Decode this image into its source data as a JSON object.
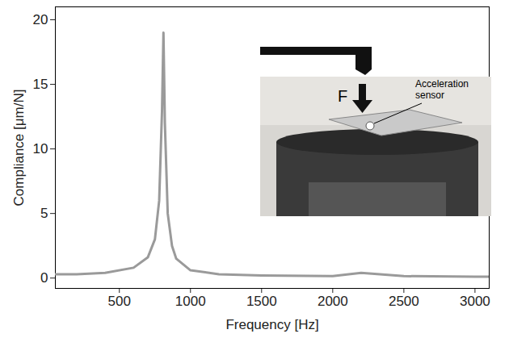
{
  "chart_data": {
    "type": "line",
    "x_label": "Frequency [Hz]",
    "y_label": "Compliance [μm/N]",
    "x": [
      50,
      200,
      400,
      600,
      700,
      750,
      780,
      800,
      810,
      820,
      840,
      870,
      900,
      1000,
      1200,
      1500,
      2000,
      2200,
      2500,
      3000,
      3100
    ],
    "values": [
      0.3,
      0.3,
      0.4,
      0.8,
      1.6,
      3.0,
      6.0,
      13.0,
      19.0,
      12.0,
      5.0,
      2.5,
      1.5,
      0.6,
      0.3,
      0.2,
      0.15,
      0.4,
      0.15,
      0.1,
      0.1
    ],
    "color": "#9a9a9a",
    "xlim": [
      50,
      3100
    ],
    "ylim": [
      -0.8,
      21
    ],
    "xticks": [
      500,
      1000,
      1500,
      2000,
      2500,
      3000
    ],
    "yticks": [
      0,
      5,
      10,
      15,
      20
    ],
    "grid": false,
    "annotations": [
      "F",
      "Acceleration sensor"
    ]
  }
}
